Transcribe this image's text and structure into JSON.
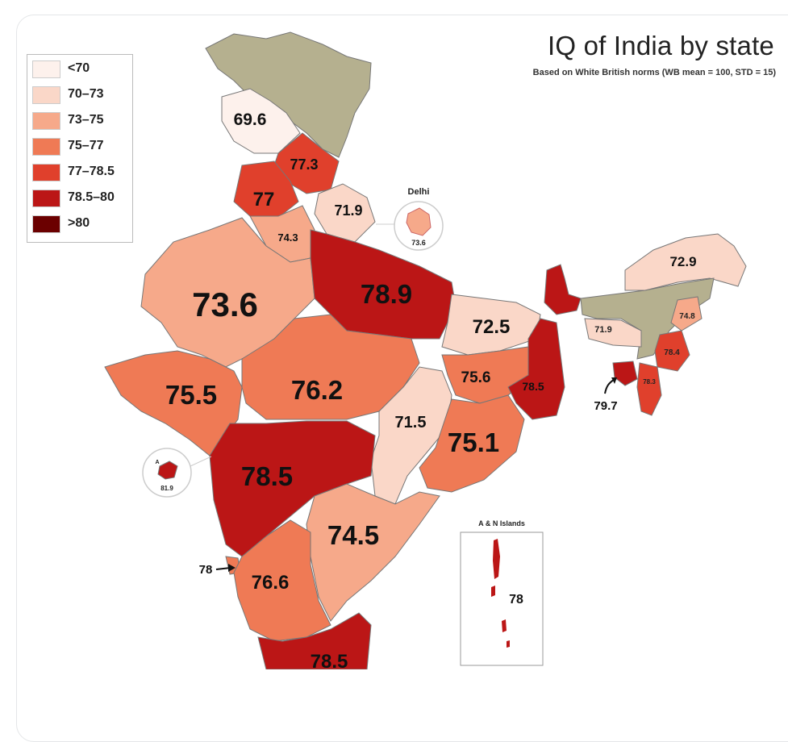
{
  "title": "IQ of India by state",
  "subtitle": "Based on White British norms (WB mean = 100, STD = 15)",
  "legend": [
    {
      "label": "<70",
      "color": "#fdf1ec"
    },
    {
      "label": "70–73",
      "color": "#fad7c8"
    },
    {
      "label": "73–75",
      "color": "#f6a98a"
    },
    {
      "label": "75–77",
      "color": "#ef7a55"
    },
    {
      "label": "77–78.5",
      "color": "#e0402c"
    },
    {
      "label": "78.5–80",
      "color": "#bb1616"
    },
    {
      "label": ">80",
      "color": "#6b0000"
    }
  ],
  "regions": [
    {
      "value": "69.6"
    },
    {
      "value": "77.3"
    },
    {
      "value": "77"
    },
    {
      "value": "71.9"
    },
    {
      "value": "74.3"
    },
    {
      "value": "73.6"
    },
    {
      "value": "78.9"
    },
    {
      "value": "72.5"
    },
    {
      "value": "75.5"
    },
    {
      "value": "76.2"
    },
    {
      "value": "75.6"
    },
    {
      "value": "78.5"
    },
    {
      "value": "71.5"
    },
    {
      "value": "75.1"
    },
    {
      "value": "78.5"
    },
    {
      "value": "74.5"
    },
    {
      "value": "76.6"
    },
    {
      "value": "78.5"
    },
    {
      "value": "72.9"
    },
    {
      "value": "71.9"
    },
    {
      "value": "74.8"
    },
    {
      "value": "78.4"
    },
    {
      "value": "78.3"
    },
    {
      "value": "79.7"
    },
    {
      "value": "78"
    }
  ],
  "insets": {
    "delhi_label": "Delhi",
    "delhi_value": "73.6",
    "dnh_label": "A",
    "dnh_value": "81.9",
    "an_label": "A & N Islands",
    "an_value": "78"
  },
  "disputed_color": "#b5b08f"
}
